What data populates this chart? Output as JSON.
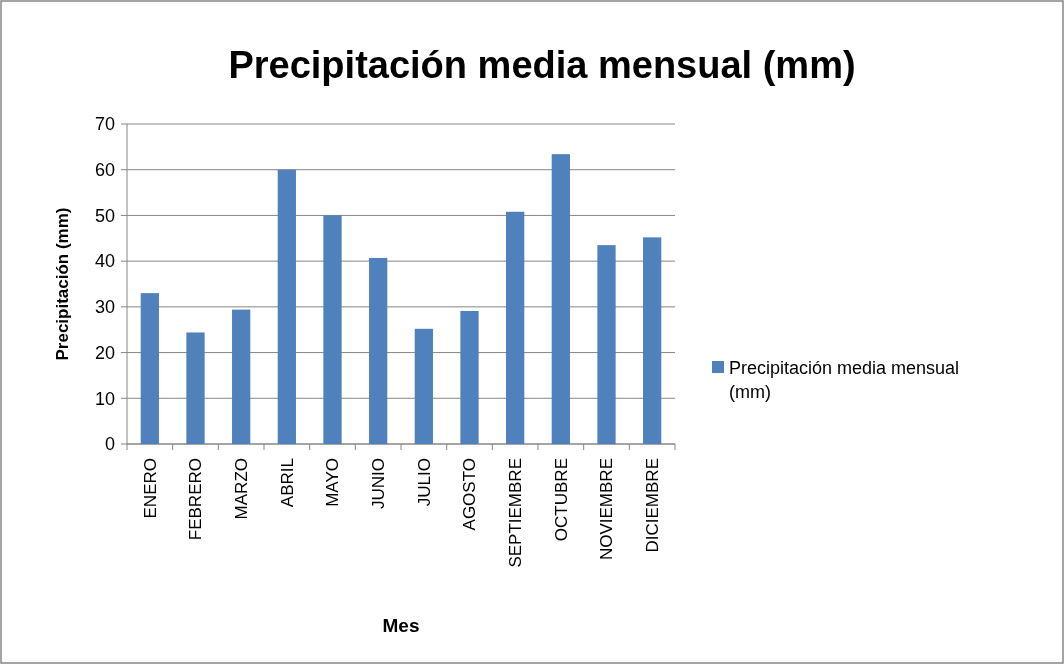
{
  "chart_data": {
    "type": "bar",
    "title": "Precipitación media mensual (mm)",
    "xlabel": "Mes",
    "ylabel": "Precipitación (mm)",
    "categories": [
      "ENERO",
      "FEBRERO",
      "MARZO",
      "ABRIL",
      "MAYO",
      "JUNIO",
      "JULIO",
      "AGOSTO",
      "SEPTIEMBRE",
      "OCTUBRE",
      "NOVIEMBRE",
      "DICIEMBRE"
    ],
    "series": [
      {
        "name": "Precipitación media mensual (mm)",
        "color": "#4f81bd",
        "values": [
          33.0,
          24.4,
          29.4,
          60,
          50,
          40.7,
          25.2,
          29.1,
          50.8,
          63.4,
          43.5,
          45.2
        ]
      }
    ],
    "ylim": [
      0,
      70
    ],
    "yticks": [
      0,
      10,
      20,
      30,
      40,
      50,
      60,
      70
    ],
    "grid": "y",
    "legend": "right"
  }
}
